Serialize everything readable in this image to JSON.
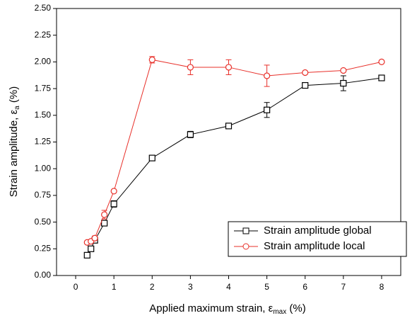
{
  "chart_data": {
    "type": "line",
    "xlabel": [
      "Applied maximum strain, ε",
      "max",
      " (%)"
    ],
    "ylabel": [
      "Strain amplitude, ε",
      "a",
      " (%)"
    ],
    "x": [
      0.3,
      0.4,
      0.5,
      0.75,
      1,
      2,
      3,
      4,
      5,
      6,
      7,
      8
    ],
    "series": [
      {
        "name": "Strain amplitude global",
        "color": "#000000",
        "marker": "square",
        "values": [
          0.19,
          0.25,
          0.33,
          0.49,
          0.67,
          1.1,
          1.32,
          1.4,
          1.55,
          1.78,
          1.8,
          1.85
        ],
        "errors": [
          null,
          null,
          null,
          0.02,
          0.03,
          null,
          0.03,
          null,
          0.07,
          0.02,
          0.07,
          null
        ]
      },
      {
        "name": "Strain amplitude local",
        "color": "#e8302a",
        "marker": "circle",
        "values": [
          0.31,
          0.32,
          0.35,
          0.57,
          0.79,
          2.02,
          1.95,
          1.95,
          1.87,
          1.9,
          1.92,
          2.0
        ],
        "errors": [
          null,
          null,
          0.02,
          0.04,
          null,
          0.03,
          0.07,
          0.07,
          0.1,
          null,
          null,
          null
        ]
      }
    ],
    "xlim": [
      -0.5,
      8.5
    ],
    "xticks": [
      0,
      1,
      2,
      3,
      4,
      5,
      6,
      7,
      8
    ],
    "ylim": [
      0,
      2.5
    ],
    "yticks": [
      {
        "value": 0,
        "label": "0.00"
      },
      {
        "value": 0.25,
        "label": "0.25"
      },
      {
        "value": 0.5,
        "label": "0.50"
      },
      {
        "value": 0.75,
        "label": "0.75"
      },
      {
        "value": 1,
        "label": "1.00"
      },
      {
        "value": 1.25,
        "label": "1.25"
      },
      {
        "value": 1.5,
        "label": "1.50"
      },
      {
        "value": 1.75,
        "label": "1.75"
      },
      {
        "value": 2,
        "label": "2.00"
      },
      {
        "value": 2.25,
        "label": "2.25"
      },
      {
        "value": 2.5,
        "label": "2.50"
      }
    ],
    "legend": "lower right"
  }
}
